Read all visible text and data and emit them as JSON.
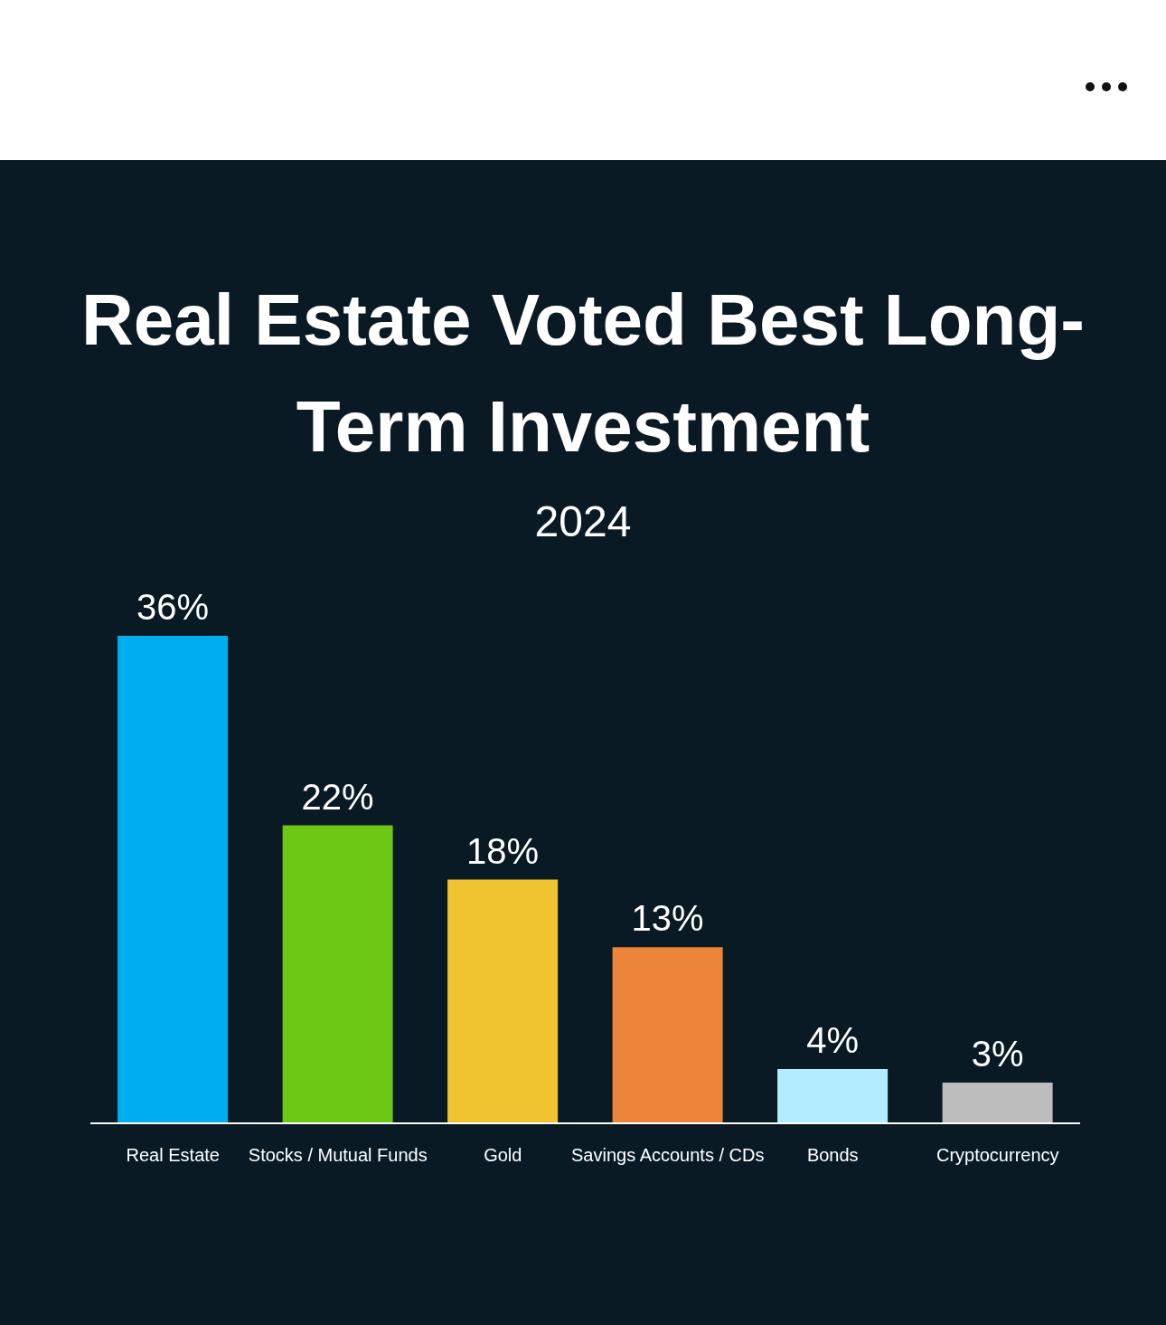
{
  "chart_data": {
    "type": "bar",
    "title": "Real Estate Voted Best Long-Term Investment",
    "subtitle": "2024",
    "categories": [
      "Real Estate",
      "Stocks / Mutual Funds",
      "Gold",
      "Savings Accounts / CDs",
      "Bonds",
      "Cryptocurrency"
    ],
    "values": [
      36,
      22,
      18,
      13,
      4,
      3
    ],
    "colors": [
      "#00aeef",
      "#6dc816",
      "#f0c330",
      "#ec853a",
      "#b3ecff",
      "#bdbdbd"
    ],
    "value_labels": [
      "36%",
      "22%",
      "18%",
      "13%",
      "4%",
      "3%"
    ]
  }
}
